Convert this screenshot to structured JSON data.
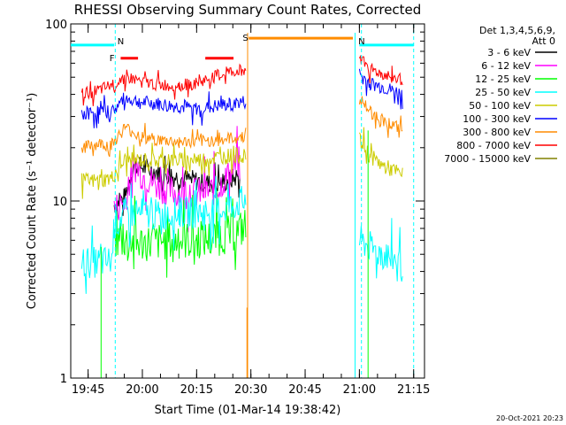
{
  "chart_data": {
    "type": "line",
    "title": "RHESSI Observing Summary Count Rates, Corrected",
    "xlabel": "Start Time (01-Mar-14 19:38:42)",
    "ylabel": "Corrected Count Rate (s⁻¹ detector⁻¹)",
    "yscale": "log",
    "ylim": [
      1,
      100
    ],
    "xlim_minutes": [
      19.67,
      21.3
    ],
    "ytick_labels": [
      {
        "v": 1,
        "label": "1"
      },
      {
        "v": 10,
        "label": "10"
      },
      {
        "v": 100,
        "label": "100"
      }
    ],
    "xtick_labels": [
      {
        "t": 19.75,
        "label": "19:45"
      },
      {
        "t": 20.0,
        "label": "20:00"
      },
      {
        "t": 20.25,
        "label": "20:15"
      },
      {
        "t": 20.5,
        "label": "20:30"
      },
      {
        "t": 20.75,
        "label": "20:45"
      },
      {
        "t": 21.0,
        "label": "21:00"
      },
      {
        "t": 21.25,
        "label": "21:15"
      }
    ],
    "legend_placement": "right",
    "legend_header": [
      "Det 1,3,4,5,6,9,",
      "Att 0"
    ],
    "series": [
      {
        "name": "3 - 6 keV",
        "color": "#000000",
        "x": [
          19.87,
          19.92,
          19.96,
          20.0,
          20.08,
          20.17,
          20.25,
          20.33,
          20.4,
          20.45
        ],
        "y": [
          9.5,
          10.5,
          16,
          15.5,
          14.5,
          13.5,
          13,
          12.5,
          13,
          14
        ]
      },
      {
        "name": "6 - 12 keV",
        "color": "#ff00ff",
        "x": [
          19.87,
          19.92,
          19.96,
          20.0,
          20.08,
          20.17,
          20.25,
          20.33,
          20.4,
          20.45
        ],
        "y": [
          9,
          10,
          16,
          14,
          12,
          11,
          11,
          11.5,
          14,
          17
        ]
      },
      {
        "name": "12 - 25 keV",
        "color": "#00ff00",
        "x": [
          19.87,
          19.92,
          20.0,
          20.08,
          20.17,
          20.25,
          20.33,
          20.4,
          20.46,
          20.48
        ],
        "y": [
          6,
          6,
          5.8,
          5.9,
          6,
          6,
          6.2,
          6.5,
          7,
          7.5
        ]
      },
      {
        "name": "25 - 50 keV",
        "color": "#00ffff",
        "x": [
          19.72,
          19.8,
          19.86,
          19.87,
          19.92,
          20.0,
          20.08,
          20.17,
          20.25,
          20.33,
          20.4,
          20.46,
          20.48,
          21.0,
          21.05,
          21.1,
          21.15,
          21.2
        ],
        "y": [
          4.5,
          4.5,
          4.6,
          7.5,
          8.5,
          8.5,
          8.3,
          8.6,
          8.6,
          8.8,
          9.2,
          10,
          10,
          6,
          5.5,
          5,
          4.8,
          4.5
        ]
      },
      {
        "name": "50 - 100 keV",
        "color": "#cccc00",
        "x": [
          19.72,
          19.8,
          19.86,
          19.92,
          20.0,
          20.08,
          20.17,
          20.25,
          20.33,
          20.4,
          20.46,
          20.48,
          21.0,
          21.05,
          21.1,
          21.15,
          21.2
        ],
        "y": [
          13,
          13,
          13.5,
          17,
          17,
          17,
          17,
          17,
          17.5,
          18,
          18,
          18,
          22,
          18,
          16,
          15,
          14
        ]
      },
      {
        "name": "100 - 300 keV",
        "color": "#0000ff",
        "x": [
          19.72,
          19.8,
          19.86,
          19.92,
          20.0,
          20.08,
          20.17,
          20.25,
          20.33,
          20.4,
          20.46,
          20.48,
          21.0,
          21.05,
          21.1,
          21.15,
          21.2
        ],
        "y": [
          31,
          32,
          32,
          38,
          36,
          35,
          34,
          33,
          34,
          35,
          36,
          36,
          52,
          46,
          44,
          42,
          40
        ]
      },
      {
        "name": "300 - 800 keV",
        "color": "#ff8c00",
        "x": [
          19.72,
          19.8,
          19.86,
          19.92,
          20.0,
          20.08,
          20.17,
          20.25,
          20.33,
          20.4,
          20.46,
          20.48,
          21.0,
          21.05,
          21.1,
          21.15,
          21.2
        ],
        "y": [
          20,
          21,
          21,
          26,
          23,
          22,
          21.5,
          21.5,
          22,
          22.5,
          23,
          23,
          38,
          32,
          29,
          27,
          25
        ]
      },
      {
        "name": "800 - 7000 keV",
        "color": "#ff0000",
        "x": [
          19.72,
          19.8,
          19.86,
          19.92,
          20.0,
          20.08,
          20.17,
          20.25,
          20.33,
          20.4,
          20.46,
          20.48,
          21.0,
          21.05,
          21.1,
          21.15,
          21.2
        ],
        "y": [
          40,
          42,
          45,
          50,
          47,
          45,
          45,
          46,
          50,
          53,
          55,
          55,
          65,
          56,
          52,
          50,
          48
        ]
      },
      {
        "name": "7000 - 15000 keV",
        "color": "#808000",
        "x": [],
        "y": []
      }
    ],
    "annotations": [
      {
        "label": "F",
        "color": "#ff0000"
      },
      {
        "label": "N",
        "color": "#00ffff"
      },
      {
        "label": "S",
        "color": "#ff8c00"
      },
      {
        "label": "N",
        "color": "#00ffff"
      }
    ],
    "footer_date": "20-Oct-2021 20:23"
  }
}
